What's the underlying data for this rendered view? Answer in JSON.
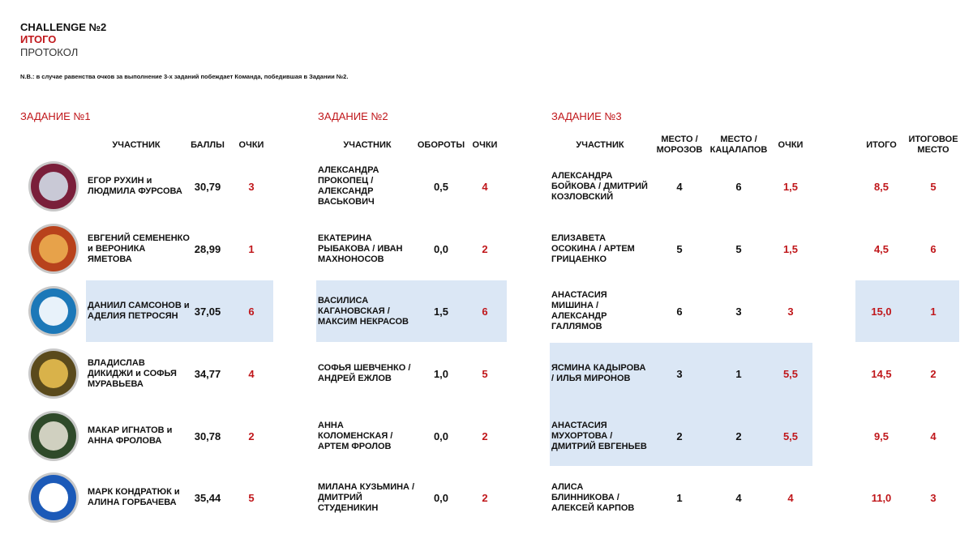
{
  "header": {
    "title": "CHALLENGE №2",
    "subtitle": "ИТОГО",
    "label": "ПРОТОКОЛ",
    "note": "N.B.: в случае равенства очков за выполнение 3-х заданий побеждает Команда, победившая в Задании №2."
  },
  "sections": [
    {
      "title": "ЗАДАНИЕ №1",
      "columns": [
        "УЧАСТНИК",
        "БАЛЛЫ",
        "ОЧКИ"
      ]
    },
    {
      "title": "ЗАДАНИЕ №2",
      "columns": [
        "УЧАСТНИК",
        "ОБОРОТЫ",
        "ОЧКИ"
      ]
    },
    {
      "title": "ЗАДАНИЕ №3",
      "columns": [
        "УЧАСТНИК",
        "МЕСТО / МОРОЗОВ",
        "МЕСТО / КАЦАЛАПОВ",
        "ОЧКИ"
      ]
    }
  ],
  "total_columns": [
    "ИТОГО",
    "ИТОГОВОЕ МЕСТО"
  ],
  "rows": [
    {
      "task1": [
        "ЕГОР РУХИН и ЛЮДМИЛА ФУРСОВА",
        "30,79",
        "3"
      ],
      "task2": [
        "АЛЕКСАНДРА ПРОКОПЕЦ / АЛЕКСАНДР ВАСЬКОВИЧ",
        "0,5",
        "4"
      ],
      "task3": [
        "АЛЕКСАНДРА БОЙКОВА / ДМИТРИЙ КОЗЛОВСКИЙ",
        "4",
        "6",
        "1,5"
      ],
      "total": [
        "8,5",
        "5"
      ]
    },
    {
      "task1": [
        "ЕВГЕНИЙ СЕМЕНЕНКО и ВЕРОНИКА ЯМЕТОВА",
        "28,99",
        "1"
      ],
      "task2": [
        "ЕКАТЕРИНА РЫБАКОВА / ИВАН МАХНОНОСОВ",
        "0,0",
        "2"
      ],
      "task3": [
        "ЕЛИЗАВЕТА ОСОКИНА / АРТЕМ ГРИЦАЕНКО",
        "5",
        "5",
        "1,5"
      ],
      "total": [
        "4,5",
        "6"
      ]
    },
    {
      "task1": [
        "ДАНИИЛ САМСОНОВ и АДЕЛИЯ ПЕТРОСЯН",
        "37,05",
        "6"
      ],
      "task2": [
        "ВАСИЛИСА КАГАНОВСКАЯ / МАКСИМ НЕКРАСОВ",
        "1,5",
        "6"
      ],
      "task3": [
        "АНАСТАСИЯ МИШИНА / АЛЕКСАНДР ГАЛЛЯМОВ",
        "6",
        "3",
        "3"
      ],
      "total": [
        "15,0",
        "1"
      ]
    },
    {
      "task1": [
        "ВЛАДИСЛАВ ДИКИДЖИ и СОФЬЯ МУРАВЬЕВА",
        "34,77",
        "4"
      ],
      "task2": [
        "СОФЬЯ ШЕВЧЕНКО / АНДРЕЙ ЕЖЛОВ",
        "1,0",
        "5"
      ],
      "task3": [
        "ЯСМИНА КАДЫРОВА / ИЛЬЯ МИРОНОВ",
        "3",
        "1",
        "5,5"
      ],
      "total": [
        "14,5",
        "2"
      ]
    },
    {
      "task1": [
        "МАКАР ИГНАТОВ и АННА ФРОЛОВА",
        "30,78",
        "2"
      ],
      "task2": [
        "АННА КОЛОМЕНСКАЯ / АРТЕМ ФРОЛОВ",
        "0,0",
        "2"
      ],
      "task3": [
        "АНАСТАСИЯ МУХОРТОВА / ДМИТРИЙ ЕВГЕНЬЕВ",
        "2",
        "2",
        "5,5"
      ],
      "total": [
        "9,5",
        "4"
      ]
    },
    {
      "task1": [
        "МАРК КОНДРАТЮК и АЛИНА ГОРБАЧЕВА",
        "35,44",
        "5"
      ],
      "task2": [
        "МИЛАНА КУЗЬМИНА / ДМИТРИЙ СТУДЕНИКИН",
        "0,0",
        "2"
      ],
      "task3": [
        "АЛИСА БЛИННИКОВА / АЛЕКСЕЙ КАРПОВ",
        "1",
        "4",
        "4"
      ],
      "total": [
        "11,0",
        "3"
      ]
    }
  ]
}
